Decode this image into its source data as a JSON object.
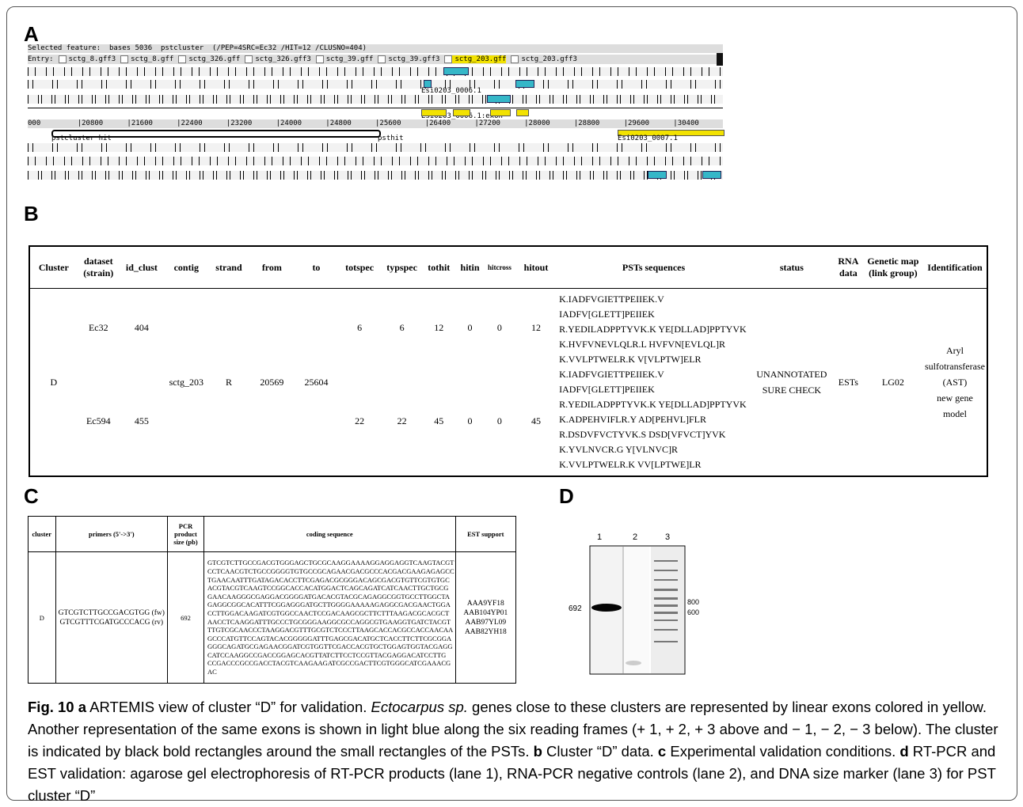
{
  "panel_labels": {
    "a": "A",
    "b": "B",
    "c": "C",
    "d": "D"
  },
  "artemis": {
    "selected_feature": "Selected feature:  bases 5036  pstcluster  (/PEP=4SRC=Ec32 /HIT=12 /CLUSNO=404)",
    "entry_label": "Entry:",
    "entries": [
      "sctg_8.gff3",
      "sctg_8.gff",
      "sctg_326.gff",
      "sctg_326.gff3",
      "sctg_39.gff",
      "sctg_39.gff3",
      "sctg_203.gff",
      "sctg_203.gff3"
    ],
    "feature_labels": [
      "Esi0203_0006.1",
      "Esi0203_0006.1:exon",
      "pstcluster hit",
      "psthit",
      "Esi0203_0007.1"
    ],
    "ruler": [
      "000",
      "|20800",
      "|21600",
      "|22400",
      "|23200",
      "|24000",
      "|24800",
      "|25600",
      "|26400",
      "|27200",
      "|28000",
      "|28800",
      "|29600",
      "|30400"
    ]
  },
  "table_b": {
    "headers": [
      "Cluster",
      "dataset (strain)",
      "id_clust",
      "contig",
      "strand",
      "from",
      "to",
      "totspec",
      "typspec",
      "tothit",
      "hitin",
      "hitcross",
      "hitout",
      "PSTs  sequences",
      "status",
      "RNA data",
      "Genetic map (link group)",
      "Identification"
    ],
    "cluster": "D",
    "contig": "sctg_203",
    "strand": "R",
    "from": "20569",
    "to": "25604",
    "status": [
      "UNANNOTATED",
      "SURE CHECK"
    ],
    "rna_data": "ESTs",
    "genetic_map": "LG02",
    "identification": [
      "Aryl",
      "sulfotransferase",
      "(AST)",
      "new gene model"
    ],
    "rows": [
      {
        "dataset": "Ec32",
        "id_clust": "404",
        "totspec": "6",
        "typspec": "6",
        "tothit": "12",
        "hitin": "0",
        "hitcross": "0",
        "hitout": "12",
        "psts": [
          "K.IADFVGIETTPEIIEK.V IADFV[GLETT]PEIIEK",
          "R.YEDILADPPTYVK.K YE[DLLAD]PPTYVK",
          "K.HVFVNEVLQLR.L HVFVN[EVLQL]R",
          "K.VVLPTWELR.K V[VLPTW]ELR"
        ]
      },
      {
        "dataset": "Ec594",
        "id_clust": "455",
        "totspec": "22",
        "typspec": "22",
        "tothit": "45",
        "hitin": "0",
        "hitcross": "0",
        "hitout": "45",
        "psts": [
          "K.IADFVGIETTPEIIEK.V IADFV[GLETT]PEIIEK",
          "R.YEDILADPPTYVK.K YE[DLLAD]PPTYVK",
          "K.ADPEHVIFLR.Y AD[PEHVL]FLR",
          "R.DSDVFVCTYVK.S DSD[VFVCT]YVK",
          "K.YVLNVCR.G Y[VLNVC]R",
          "K.VVLPTWELR.K VV[LPTWE]LR"
        ]
      }
    ]
  },
  "table_c": {
    "headers": [
      "cluster",
      "primers (5'->3')",
      "PCR product size (pb)",
      "coding sequence",
      "EST support"
    ],
    "cluster": "D",
    "primers": [
      "GTCGTCTTGCCGACGTGG (fw)",
      "GTCGTTTCGATGCCCACG (rv)"
    ],
    "size": "692",
    "sequence": [
      "GTCGTCTTGCCGACGTGGGAGCTGCGCAAGGAAAAGGAGGAGGTCAAGTACGT",
      "CCTCAACGTCTGCCGGGGTGTGCCGCAGAACGACGCCCACGACGAAGAGAGCC",
      "TGAACAATTTGATAGACACCTTCGAGACGCGGGACAGCGACGTGTTCGTGTGC",
      "ACGTACGTCAAGTCCGGCACCACATGGACTCAGCAGATCATCAACTTGCTGCG",
      "GAACAAGGGCGAGGACGGGGATGACACGTACGCAGAGGCGGTGCCTTGGCTA",
      "GAGGCGGCACATTTCGGAGGGATGCTTGGGGAAAAAGAGGCGACGAACTGGA",
      "CCTTGGACAAGATCGTGGCCAACTCCGACAAGCGCTTCTTTAAGACGCACGCT",
      "AACCTCAAGGATTTGCCCTGCGGGAAGGCGCCAGGCGTGAAGGTGATCTACGT",
      "TTGTCGCAACCCTAAGGACGTTTGCGTCTCCCTTAAGCACCACGCCACCAACAA",
      "GCCCATGTTCCAGTACACGGGGGATTTGAGCGACATGCTCACCTTCTTCGCGGA",
      "GGGCAGATGCGAGAACGGATCGTGGTTCGACCACGTGCTGGAGTGGTACGAGG",
      "CATCCAAGGCCGACCGGAGCACGTTATCTTCCTCCGTTACGAGGACATCCTTG",
      "CCGACCCGCCGACCTACGTCAAGAAGATCGCCGACTTCGTGGGCATCGAAACG",
      "AC"
    ],
    "est_support": [
      "AAA9YF18",
      "AAB104YP01",
      "AAB97YL09",
      "AAB82YH18"
    ]
  },
  "gel": {
    "lanes": [
      "1",
      "2",
      "3"
    ],
    "band_label": "692",
    "marker_labels": [
      "800",
      "600"
    ]
  },
  "caption": [
    "Fig. 10 a",
    " ARTEMIS view of cluster “D” for validation. ",
    "Ectocarpus sp.",
    " genes close to these clusters are represented by linear exons colored in yellow. Another representation of the same exons is shown in light blue along the six reading frames (+ 1, + 2, + 3 above and − 1, − 2, − 3 below). The cluster is indicated by black bold rectangles around the small rectangles of the PSTs. ",
    "b",
    " Cluster “D” data. ",
    "c",
    " Experimental validation conditions. ",
    "d",
    " RT-PCR and EST validation: agarose gel electrophoresis of RT-PCR products (lane 1), RNA-PCR negative controls (lane 2), and DNA size marker (lane 3) for PST cluster “D”"
  ]
}
